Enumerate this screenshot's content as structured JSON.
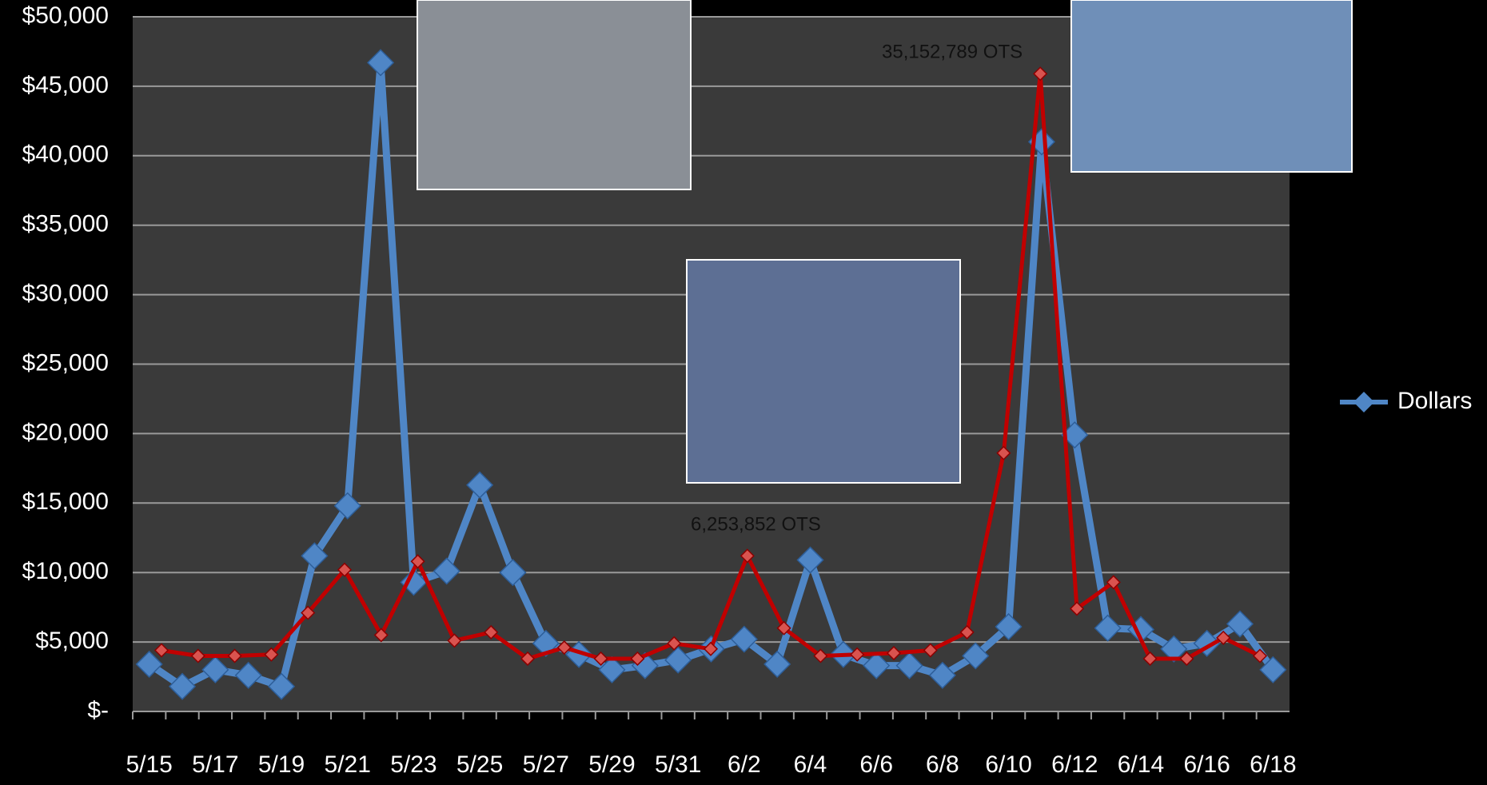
{
  "chart_data": [
    {
      "type": "line",
      "categories": [
        "5/15",
        null,
        "5/17",
        null,
        "5/19",
        null,
        "5/21",
        null,
        "5/23",
        null,
        "5/25",
        null,
        "5/27",
        null,
        "5/29",
        null,
        "5/31",
        null,
        "6/2",
        null,
        "6/4",
        null,
        "6/6",
        null,
        "6/8",
        null,
        "6/10",
        null,
        "6/12",
        null,
        "6/14",
        null,
        "6/16",
        null,
        "6/18"
      ],
      "series": [
        {
          "name": "Dollars",
          "color": "#4f86c6",
          "values": [
            3400,
            1800,
            3000,
            2600,
            1800,
            11200,
            14800,
            46700,
            9300,
            10100,
            16300,
            10000,
            4900,
            4100,
            3000,
            3300,
            3700,
            4500,
            5200,
            3400,
            10900,
            4100,
            3300,
            3300,
            2600,
            4000,
            6100,
            41000,
            19900,
            6000,
            5900,
            4500,
            4900,
            6300,
            3000
          ]
        }
      ],
      "ylim": [
        0,
        50000
      ],
      "yticks": [
        {
          "value": 0,
          "label": "$-"
        },
        {
          "value": 5000,
          "label": "$5,000"
        },
        {
          "value": 10000,
          "label": "$10,000"
        },
        {
          "value": 15000,
          "label": "$15,000"
        },
        {
          "value": 20000,
          "label": "$20,000"
        },
        {
          "value": 25000,
          "label": "$25,000"
        },
        {
          "value": 30000,
          "label": "$30,000"
        },
        {
          "value": 35000,
          "label": "$35,000"
        },
        {
          "value": 40000,
          "label": "$40,000"
        },
        {
          "value": 45000,
          "label": "$45,000"
        },
        {
          "value": 50000,
          "label": "$50,000"
        }
      ],
      "grid": true,
      "legend": "right"
    },
    {
      "type": "line",
      "categories": [
        null,
        null,
        null,
        null,
        null,
        null,
        null,
        null,
        null,
        null,
        null,
        null,
        null,
        null,
        null,
        null,
        null,
        null,
        null,
        null,
        null,
        null,
        null,
        null,
        null,
        null,
        null,
        null,
        null,
        null,
        null
      ],
      "color": "#c00000",
      "values": [
        4400,
        4000,
        4000,
        4100,
        7100,
        10200,
        5500,
        10800,
        5100,
        5700,
        3800,
        4600,
        3800,
        3800,
        4900,
        4500,
        11200,
        6000,
        4000,
        4100,
        4200,
        4400,
        5700,
        18600,
        45900,
        7400,
        9300,
        3800,
        3800,
        5300,
        4000
      ],
      "ylim": [
        0,
        50000
      ],
      "annotations": [
        "35,152,789 OTS",
        "6,253,852 OTS"
      ]
    }
  ]
}
